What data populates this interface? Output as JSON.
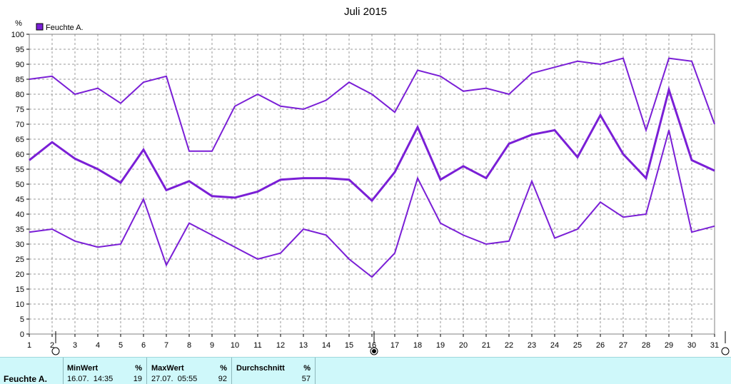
{
  "chart_data": {
    "type": "line",
    "title": "Juli 2015",
    "ylabel": "%",
    "ylim": [
      0,
      100
    ],
    "yticks": [
      0,
      5,
      10,
      15,
      20,
      25,
      30,
      35,
      40,
      45,
      50,
      55,
      60,
      65,
      70,
      75,
      80,
      85,
      90,
      95,
      100
    ],
    "x": [
      1,
      2,
      3,
      4,
      5,
      6,
      7,
      8,
      9,
      10,
      11,
      12,
      13,
      14,
      15,
      16,
      17,
      18,
      19,
      20,
      21,
      22,
      23,
      24,
      25,
      26,
      27,
      28,
      29,
      30,
      31
    ],
    "grid": true,
    "legend_position": "top-left",
    "legend": [
      {
        "name": "Feuchte A.",
        "color": "#7a1fd6"
      }
    ],
    "series": [
      {
        "role": "max",
        "color": "#7a1fd6",
        "values": [
          85,
          86,
          80,
          82,
          77,
          84,
          86,
          61,
          61,
          76,
          80,
          76,
          75,
          78,
          84,
          80,
          74,
          88,
          86,
          81,
          82,
          80,
          87,
          89,
          91,
          90,
          92,
          68,
          92,
          91,
          70
        ]
      },
      {
        "role": "avg",
        "color": "#7a1fd6",
        "values": [
          58,
          64,
          58.5,
          55,
          50.5,
          61.5,
          48,
          51,
          46,
          45.5,
          47.5,
          51.5,
          52,
          52,
          51.5,
          44.5,
          54,
          69,
          51.5,
          56,
          52,
          63.5,
          66.5,
          68,
          59,
          73,
          60,
          52,
          81.5,
          58,
          54.5
        ]
      },
      {
        "role": "min",
        "color": "#7a1fd6",
        "values": [
          34,
          35,
          31,
          29,
          30,
          45,
          23,
          37,
          33,
          29,
          25,
          27,
          35,
          33,
          25,
          19,
          27,
          52,
          37,
          33,
          30,
          31,
          51,
          32,
          35,
          44,
          39,
          40,
          68,
          34,
          36
        ]
      }
    ]
  },
  "stats": {
    "series_name": "Feuchte A.",
    "columns": [
      {
        "label": "MinWert",
        "unit": "%",
        "time": "16.07.  14:35",
        "value": "19"
      },
      {
        "label": "MaxWert",
        "unit": "%",
        "time": "27.07.  05:55",
        "value": "92"
      },
      {
        "label": "Durchschnitt",
        "unit": "%",
        "time": "",
        "value": "57"
      }
    ]
  }
}
